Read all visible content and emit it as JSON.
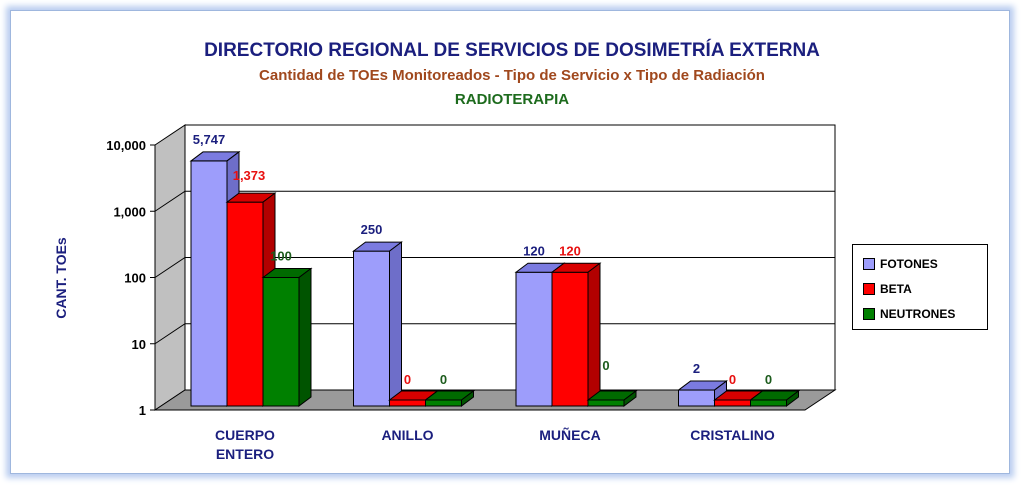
{
  "chart_data": {
    "type": "bar",
    "title": "DIRECTORIO REGIONAL DE SERVICIOS DE DOSIMETRÍA EXTERNA",
    "subtitle": "Cantidad de TOEs Monitoreados - Tipo de Servicio x Tipo de Radiación",
    "subtitle2": "RADIOTERAPIA",
    "ylabel": "CANT. TOEs",
    "xlabel": "",
    "yscale": "log",
    "ylim": [
      1,
      10000
    ],
    "yticks": [
      "1",
      "10",
      "100",
      "1,000",
      "10,000"
    ],
    "categories": [
      "CUERPO ENTERO",
      "ANILLO",
      "MUÑECA",
      "CRISTALINO"
    ],
    "series": [
      {
        "name": "FOTONES",
        "values": [
          5747,
          250,
          120,
          2
        ],
        "labels": [
          "5,747",
          "250",
          "120",
          "2"
        ],
        "color": "#9d9dfb",
        "side": "#6e6ec9",
        "top": "#7b7be0",
        "label_color": "#1b1f7e"
      },
      {
        "name": "BETA",
        "values": [
          1373,
          0,
          120,
          0
        ],
        "labels": [
          "1,373",
          "0",
          "120",
          "0"
        ],
        "color": "#ff0000",
        "side": "#b20000",
        "top": "#d80000",
        "label_color": "#e81010"
      },
      {
        "name": "NEUTRONES",
        "values": [
          100,
          0,
          0,
          0
        ],
        "labels": [
          "100",
          "0",
          "0",
          "0"
        ],
        "color": "#008000",
        "side": "#005400",
        "top": "#006a00",
        "label_color": "#1d5c1d"
      }
    ],
    "legend_position": "right",
    "grid": true
  }
}
